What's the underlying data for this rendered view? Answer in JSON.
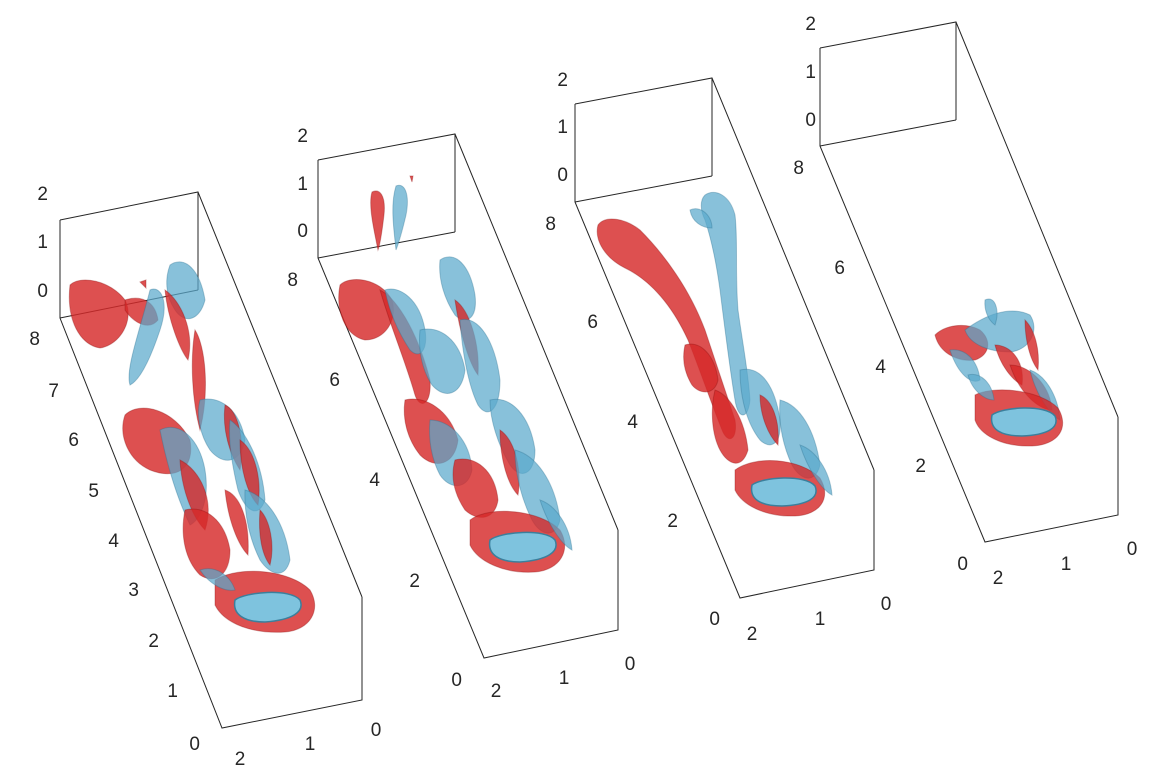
{
  "panels": [
    {
      "name": "panel-1",
      "z_ticks": [
        "2",
        "1",
        "0"
      ],
      "y_ticks": [
        "8",
        "7",
        "6",
        "5",
        "4",
        "3",
        "2",
        "1",
        "0"
      ],
      "x_ticks": [
        "2",
        "1",
        "0"
      ]
    },
    {
      "name": "panel-2",
      "z_ticks": [
        "2",
        "1",
        "0"
      ],
      "y_ticks": [
        "8",
        "6",
        "4",
        "2",
        "0"
      ],
      "x_ticks": [
        "2",
        "1",
        "0"
      ]
    },
    {
      "name": "panel-3",
      "z_ticks": [
        "2",
        "1",
        "0"
      ],
      "y_ticks": [
        "8",
        "6",
        "4",
        "2",
        "0"
      ],
      "x_ticks": [
        "2",
        "1",
        "0"
      ]
    },
    {
      "name": "panel-4",
      "z_ticks": [
        "2",
        "1",
        "0"
      ],
      "y_ticks": [
        "8",
        "6",
        "4",
        "2",
        "0"
      ],
      "x_ticks": [
        "2",
        "1",
        "0"
      ]
    }
  ],
  "colors": {
    "positive_vortex": "#d62a2a",
    "negative_vortex": "#5aa9cc",
    "axes": "#262626"
  }
}
